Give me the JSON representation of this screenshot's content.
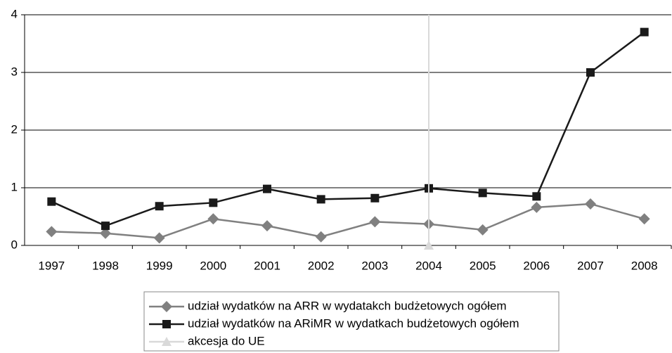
{
  "chart_data": {
    "type": "line",
    "categories": [
      "1997",
      "1998",
      "1999",
      "2000",
      "2001",
      "2002",
      "2003",
      "2004",
      "2005",
      "2006",
      "2007",
      "2008"
    ],
    "series": [
      {
        "name": "udział wydatków na ARR w wydatakch budżetowych ogółem",
        "color": "#808080",
        "marker": "diamond",
        "values": [
          0.24,
          0.21,
          0.13,
          0.46,
          0.34,
          0.15,
          0.41,
          0.37,
          0.27,
          0.66,
          0.72,
          0.46
        ]
      },
      {
        "name": "udział wydatków na ARiMR w wydatkach budżetowych ogółem",
        "color": "#1a1a1a",
        "marker": "square",
        "values": [
          0.76,
          0.34,
          0.68,
          0.74,
          0.98,
          0.8,
          0.82,
          0.99,
          0.91,
          0.85,
          3.0,
          3.7
        ]
      },
      {
        "name": "akcesja do UE",
        "color": "#d9d9d9",
        "marker": "triangle",
        "values": [
          null,
          null,
          null,
          null,
          null,
          null,
          null,
          0,
          null,
          null,
          null,
          null
        ]
      }
    ],
    "ylim": [
      0,
      4
    ],
    "yticks": [
      0,
      1,
      2,
      3,
      4
    ],
    "grid": true
  }
}
